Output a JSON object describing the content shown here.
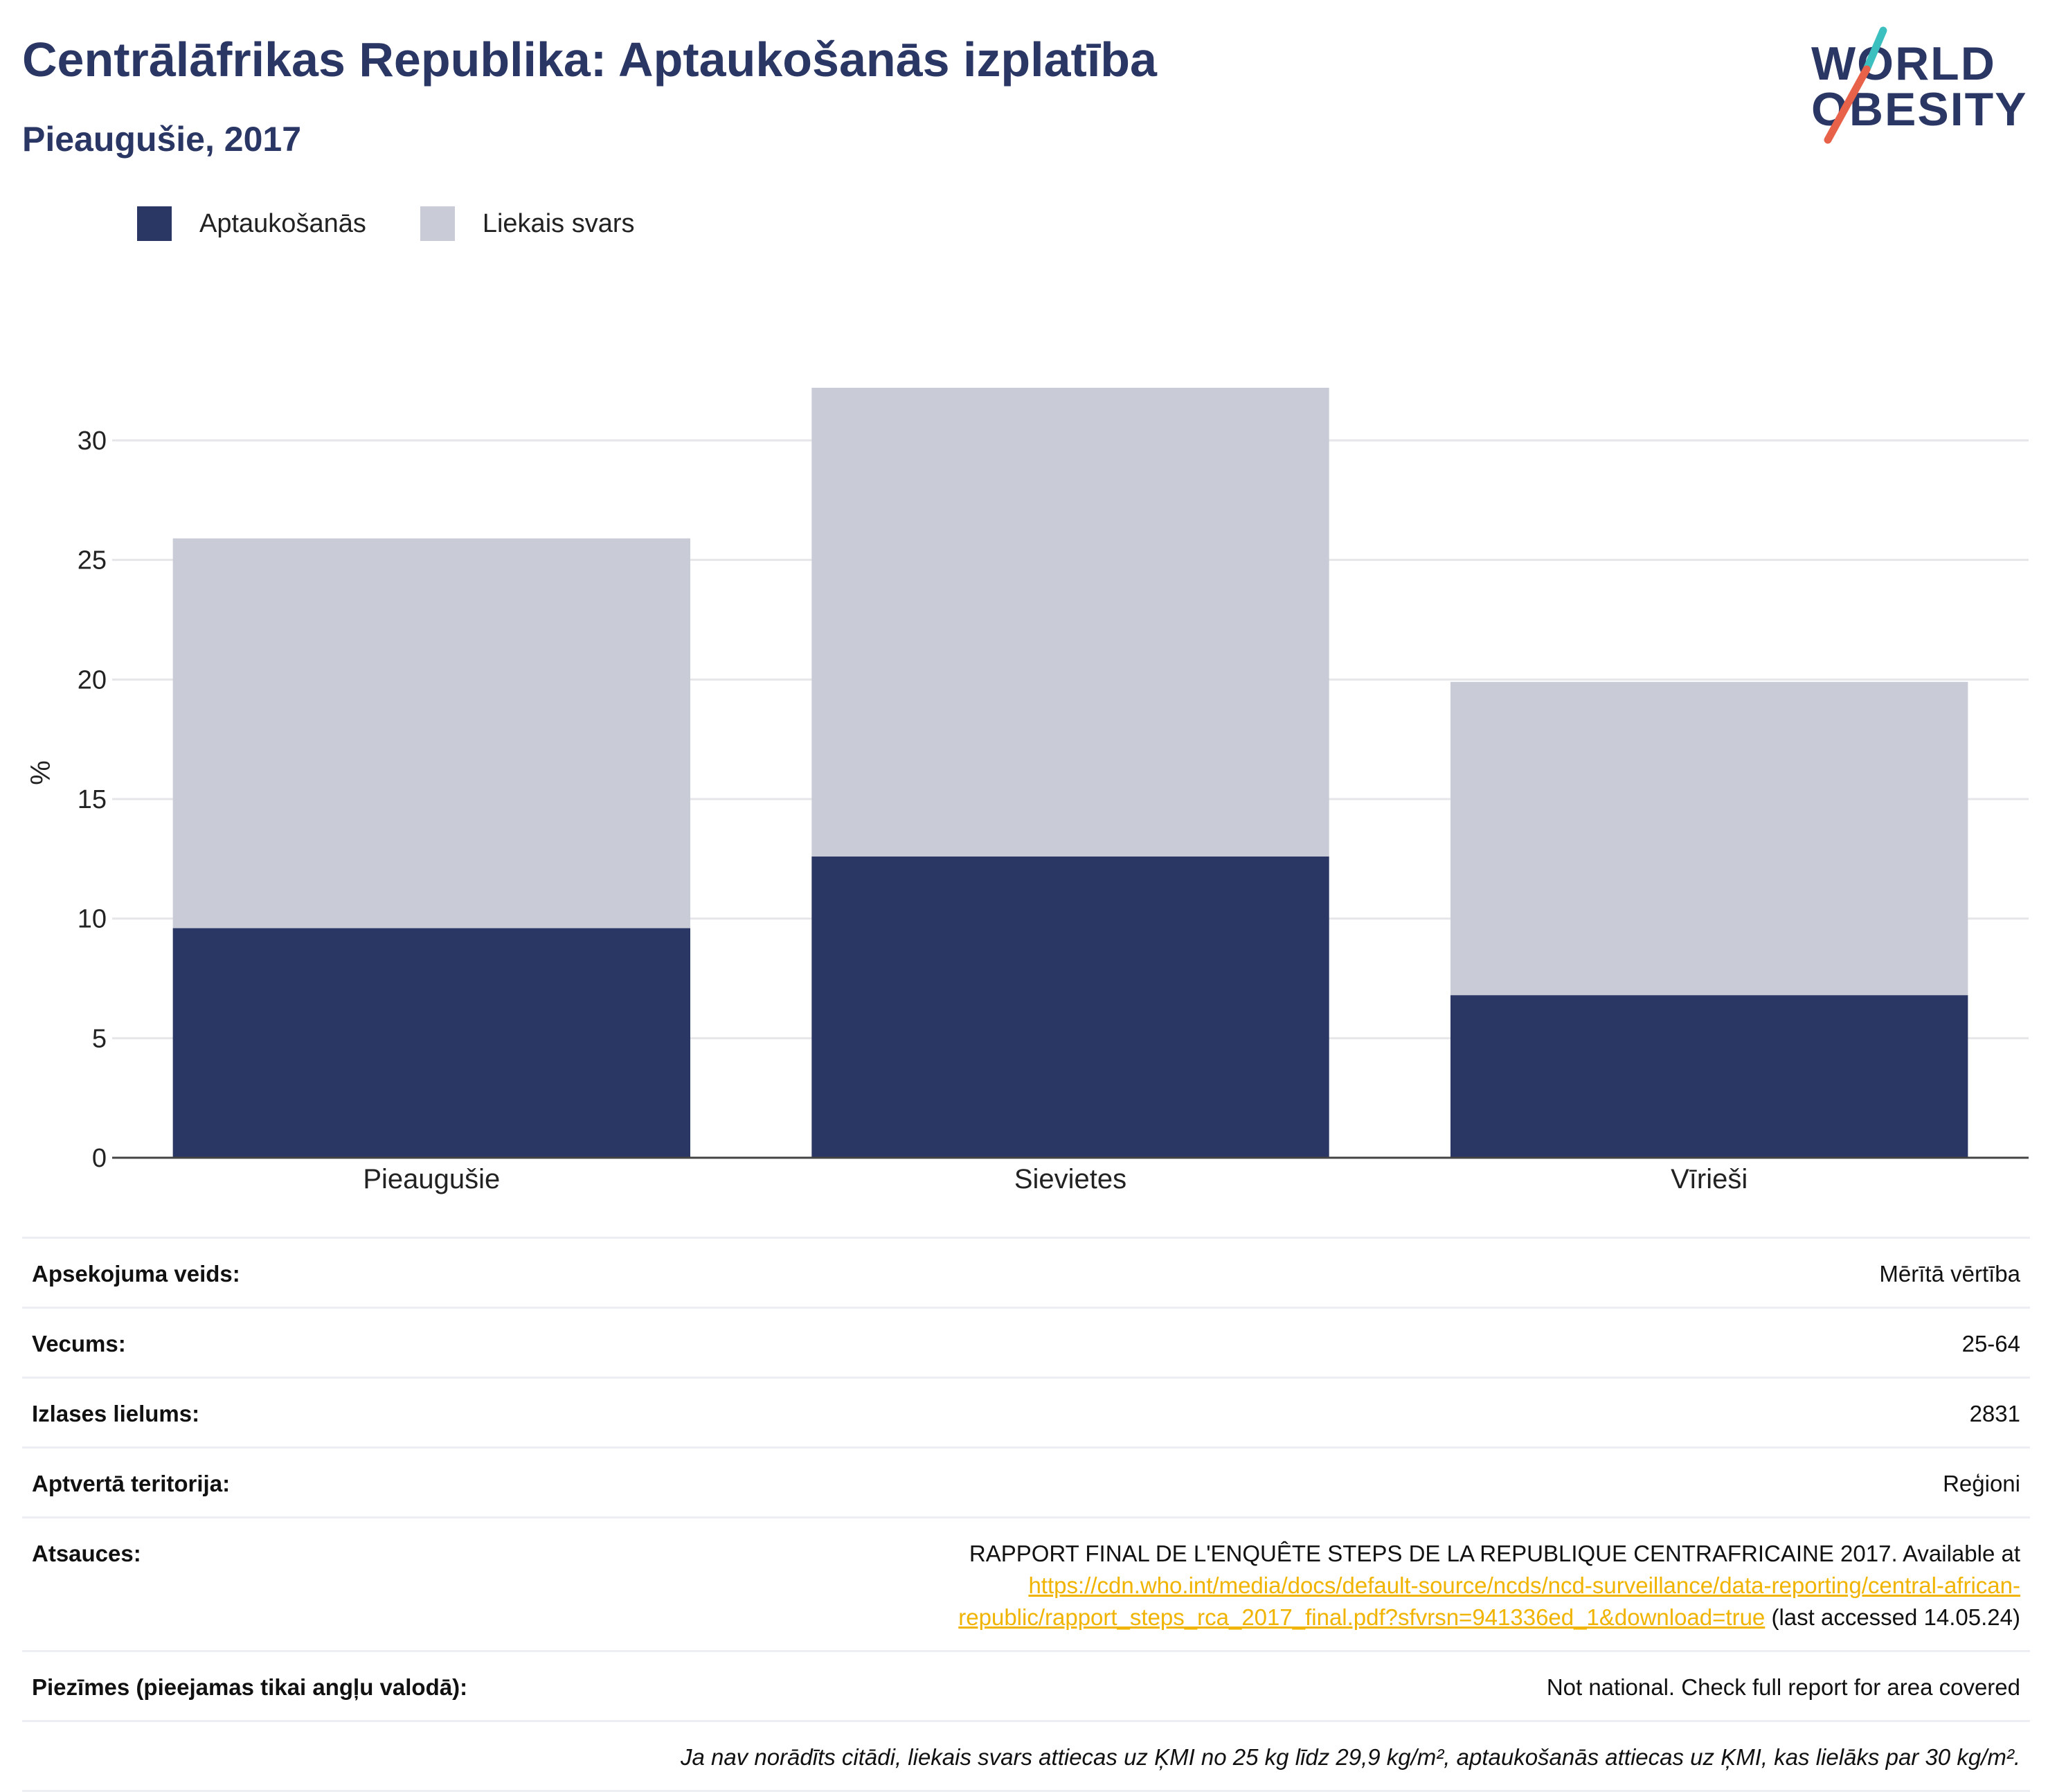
{
  "header": {
    "title": "Centrālāfrikas Republika: Aptaukošanās izplatība",
    "subtitle": "Pieaugušie, 2017"
  },
  "logo": {
    "line1": "WORLD",
    "line2": "OBESITY",
    "accent_colors": [
      "#3cbfbf",
      "#e8624a"
    ]
  },
  "legend": {
    "items": [
      {
        "label": "Aptaukošanās",
        "color": "#2a3663"
      },
      {
        "label": "Liekais svars",
        "color": "#c9cbd6"
      }
    ]
  },
  "chart_data": {
    "type": "bar",
    "stacked": true,
    "categories": [
      "Pieaugušie",
      "Sievietes",
      "Vīrieši"
    ],
    "series": [
      {
        "name": "Aptaukošanās",
        "values": [
          9.6,
          12.6,
          6.8
        ],
        "color": "#2a3663"
      },
      {
        "name": "Liekais svars",
        "values": [
          16.3,
          19.6,
          13.1
        ],
        "color": "#c9cbd6"
      }
    ],
    "ylabel": "%",
    "xlabel": "",
    "ylim": [
      0,
      32.2
    ],
    "yticks": [
      0,
      5,
      10,
      15,
      20,
      25,
      30
    ],
    "grid": true,
    "legend_position": "top-left"
  },
  "info": {
    "rows": [
      {
        "key": "Apsekojuma veids:",
        "value": "Mērītā vērtība"
      },
      {
        "key": "Vecums:",
        "value": "25-64"
      },
      {
        "key": "Izlases lielums:",
        "value": "2831"
      },
      {
        "key": "Aptvertā teritorija:",
        "value": "Reģioni"
      }
    ],
    "reference": {
      "key": "Atsauces:",
      "text": "RAPPORT FINAL DE L'ENQUÊTE STEPS DE LA REPUBLIQUE CENTRAFRICAINE 2017. Available at",
      "link_line1": "https://cdn.who.int/media/docs/default-source/ncds/ncd-surveillance/data-reporting/central-african-",
      "link_line2": "republic/rapport_steps_rca_2017_final.pdf?sfvrsn=941336ed_1&download=true",
      "suffix": "(last accessed 14.05.24)"
    },
    "notes": {
      "key": "Piezīmes (pieejamas tikai angļu valodā):",
      "value": "Not national. Check full report for area covered"
    },
    "footnote": "Ja nav norādīts citādi, liekais svars attiecas uz ĶMI no 25 kg līdz 29,9 kg/m², aptaukošanās attiecas uz ĶMI, kas lielāks par 30 kg/m²."
  }
}
